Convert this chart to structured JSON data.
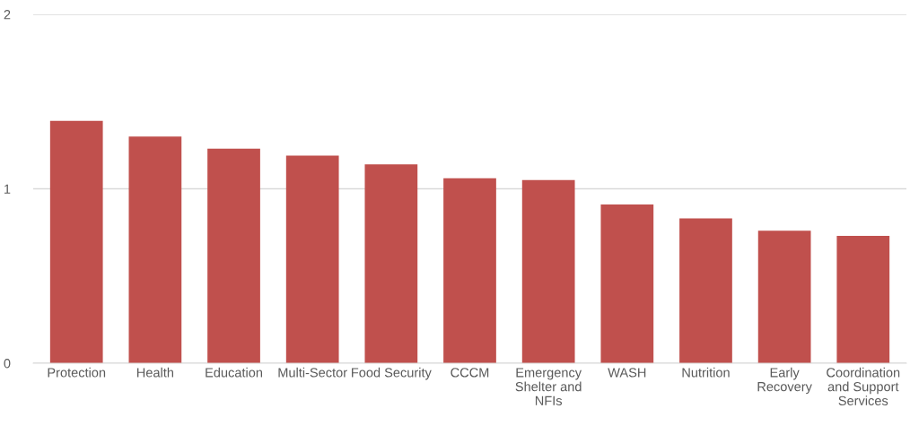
{
  "chart_data": {
    "type": "bar",
    "categories": [
      "Protection",
      "Health",
      "Education",
      "Multi-Sector",
      "Food Security",
      "CCCM",
      "Emergency Shelter and NFIs",
      "WASH",
      "Nutrition",
      "Early Recovery",
      "Coordination and Support Services"
    ],
    "values": [
      1.39,
      1.3,
      1.23,
      1.19,
      1.14,
      1.06,
      1.05,
      0.91,
      0.83,
      0.76,
      0.73
    ],
    "color": "#c0504d",
    "ylim": [
      0,
      2
    ],
    "yticks": [
      0,
      1,
      2
    ],
    "grid": "y",
    "legend": false
  }
}
